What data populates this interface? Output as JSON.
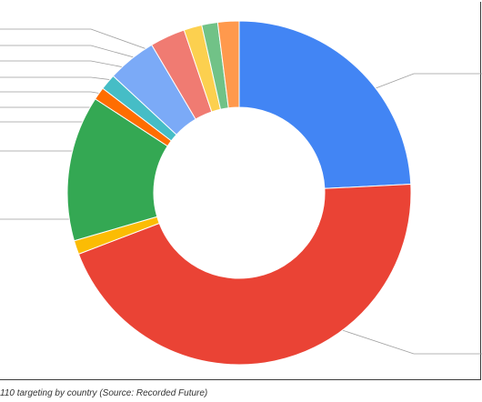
{
  "caption": "110 targeting by country (Source: Recorded Future)",
  "chart_data": {
    "type": "pie",
    "style": "donut",
    "title": "",
    "legend": "none",
    "series_labels_visible": false,
    "slices": [
      {
        "value": 24.2,
        "color": "#4285f4"
      },
      {
        "value": 45.0,
        "color": "#ea4335"
      },
      {
        "value": 1.3,
        "color": "#fbbc04"
      },
      {
        "value": 13.7,
        "color": "#34a853"
      },
      {
        "value": 1.2,
        "color": "#ff6d01"
      },
      {
        "value": 1.5,
        "color": "#46bdc6"
      },
      {
        "value": 4.6,
        "color": "#7baaf7"
      },
      {
        "value": 3.3,
        "color": "#f07b72"
      },
      {
        "value": 1.7,
        "color": "#fcd04f"
      },
      {
        "value": 1.5,
        "color": "#71c287"
      },
      {
        "value": 2.0,
        "color": "#ff994d"
      }
    ]
  }
}
